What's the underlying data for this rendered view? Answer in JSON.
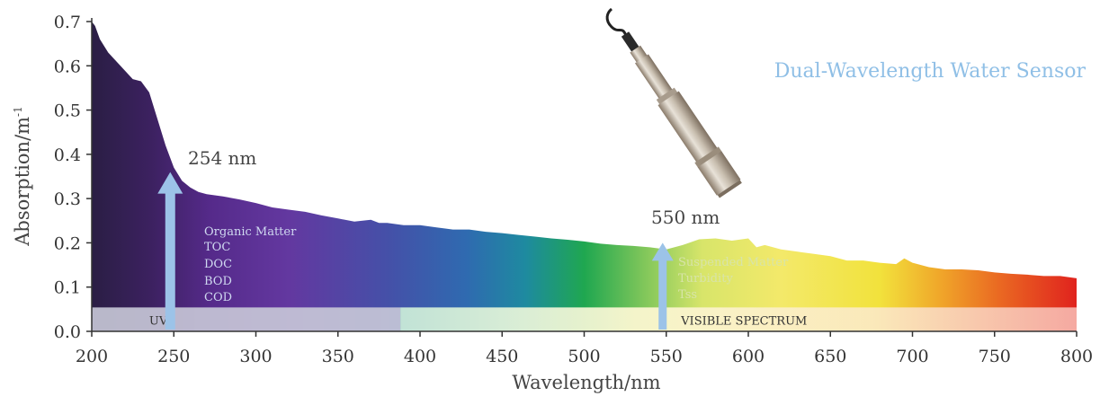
{
  "chart_data": {
    "type": "area",
    "title": "",
    "xlabel": "Wavelength/nm",
    "ylabel_main": "Absorption/m",
    "ylabel_sup": "-1",
    "xlim": [
      200,
      800
    ],
    "ylim": [
      0,
      0.7
    ],
    "x_ticks": [
      "200",
      "250",
      "300",
      "350",
      "400",
      "450",
      "500",
      "550",
      "600",
      "650",
      "700",
      "750",
      "800"
    ],
    "y_ticks": [
      "0.0",
      "0.1",
      "0.2",
      "0.3",
      "0.4",
      "0.5",
      "0.6",
      "0.7"
    ],
    "grid": false,
    "fill": "spectral gradient (violet to red)",
    "series": [
      {
        "x": [
          200,
          202,
          205,
          210,
          215,
          220,
          225,
          230,
          235,
          240,
          245,
          250,
          255,
          260,
          265,
          270,
          280,
          290,
          300,
          310,
          320,
          330,
          340,
          350,
          360,
          370,
          375,
          380,
          390,
          400,
          410,
          420,
          430,
          440,
          450,
          460,
          470,
          480,
          490,
          500,
          510,
          520,
          530,
          540,
          550,
          560,
          570,
          580,
          590,
          600,
          605,
          610,
          620,
          630,
          640,
          650,
          660,
          670,
          680,
          690,
          695,
          700,
          710,
          720,
          730,
          740,
          750,
          760,
          770,
          780,
          790,
          800
        ],
        "values": [
          0.7,
          0.69,
          0.66,
          0.63,
          0.61,
          0.59,
          0.57,
          0.565,
          0.54,
          0.48,
          0.42,
          0.37,
          0.34,
          0.325,
          0.315,
          0.31,
          0.305,
          0.298,
          0.29,
          0.28,
          0.275,
          0.27,
          0.262,
          0.255,
          0.248,
          0.252,
          0.245,
          0.245,
          0.24,
          0.24,
          0.235,
          0.23,
          0.23,
          0.225,
          0.222,
          0.218,
          0.214,
          0.21,
          0.207,
          0.203,
          0.198,
          0.195,
          0.193,
          0.19,
          0.185,
          0.195,
          0.208,
          0.21,
          0.205,
          0.21,
          0.19,
          0.195,
          0.185,
          0.18,
          0.175,
          0.17,
          0.16,
          0.16,
          0.155,
          0.152,
          0.165,
          0.155,
          0.145,
          0.14,
          0.14,
          0.138,
          0.133,
          0.13,
          0.128,
          0.125,
          0.125,
          0.12
        ]
      }
    ],
    "bands": [
      {
        "label": "UV",
        "from": 200,
        "to": 388,
        "y0": 0.0,
        "y1": 0.05
      },
      {
        "label": "VISIBLE SPECTRUM",
        "from": 388,
        "to": 800,
        "y0": 0.0,
        "y1": 0.05
      }
    ],
    "arrows": [
      {
        "at": 250,
        "label": "254 nm",
        "tip": 0.36,
        "notes": [
          "Organic Matter",
          "TOC",
          "DOC",
          "BOD",
          "COD"
        ]
      },
      {
        "at": 550,
        "label": "550 nm",
        "tip": 0.2,
        "notes": [
          "Suspended Matter",
          "Turbidity",
          "Tss"
        ]
      }
    ],
    "annotation": "Dual-Wavelength Water Sensor"
  },
  "colors": {
    "arrow": "#9cc3e8",
    "annotation_text": "#8fbfe6",
    "axis": "#333333",
    "uv_band": "#c8c8d6",
    "visible_band_start": "#c8ead8",
    "visible_band_mid": "#fbf7d0",
    "visible_band_end": "#f6b0a8"
  }
}
